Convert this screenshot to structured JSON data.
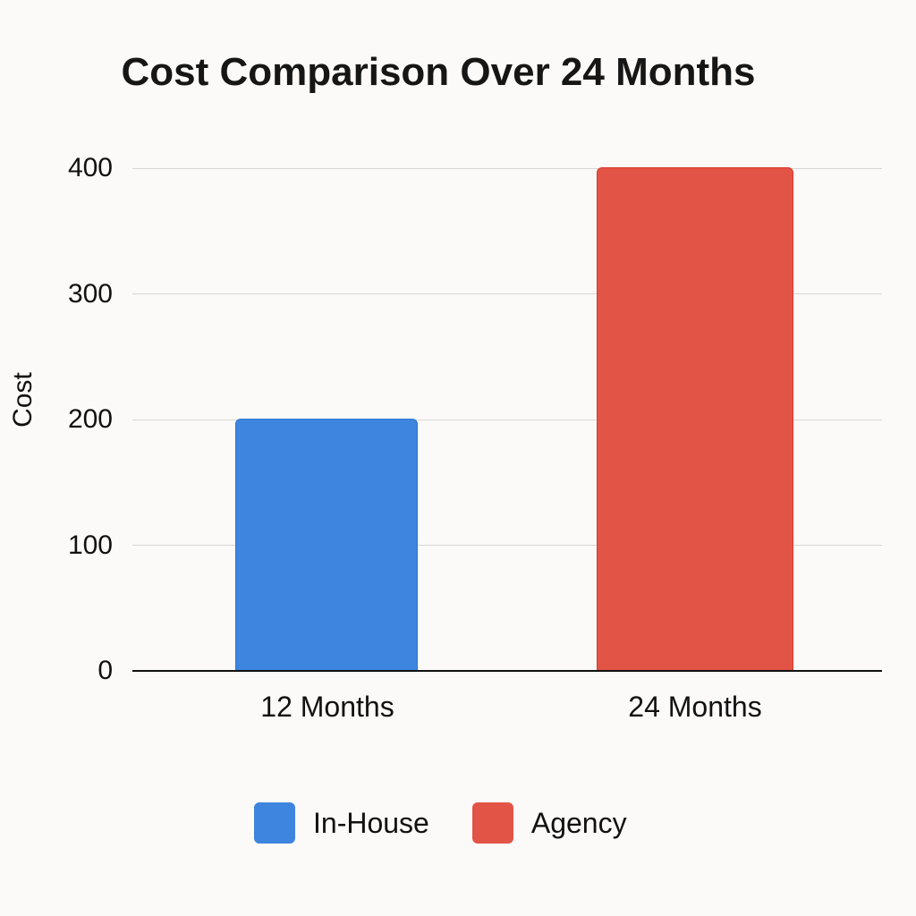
{
  "chart_data": {
    "type": "bar",
    "title": "Cost Comparison Over 24 Months",
    "xlabel": "",
    "ylabel": "Cost",
    "categories": [
      "12 Months",
      "24 Months"
    ],
    "series": [
      {
        "name": "In-House",
        "color": "#3d85de",
        "values": [
          200,
          null
        ]
      },
      {
        "name": "Agency",
        "color": "#e25446",
        "values": [
          null,
          400
        ]
      }
    ],
    "ylim": [
      0,
      400
    ],
    "yticks": [
      0,
      100,
      200,
      300,
      400
    ],
    "grid": true,
    "legend_position": "bottom"
  },
  "title": "Cost Comparison Over 24 Months",
  "axis": {
    "ylabel": "Cost",
    "yticks": [
      "0",
      "100",
      "200",
      "300",
      "400"
    ],
    "xticks": [
      "12 Months",
      "24 Months"
    ]
  },
  "legend": [
    {
      "label": "In-House",
      "color": "#3d85de"
    },
    {
      "label": "Agency",
      "color": "#e25446"
    }
  ]
}
